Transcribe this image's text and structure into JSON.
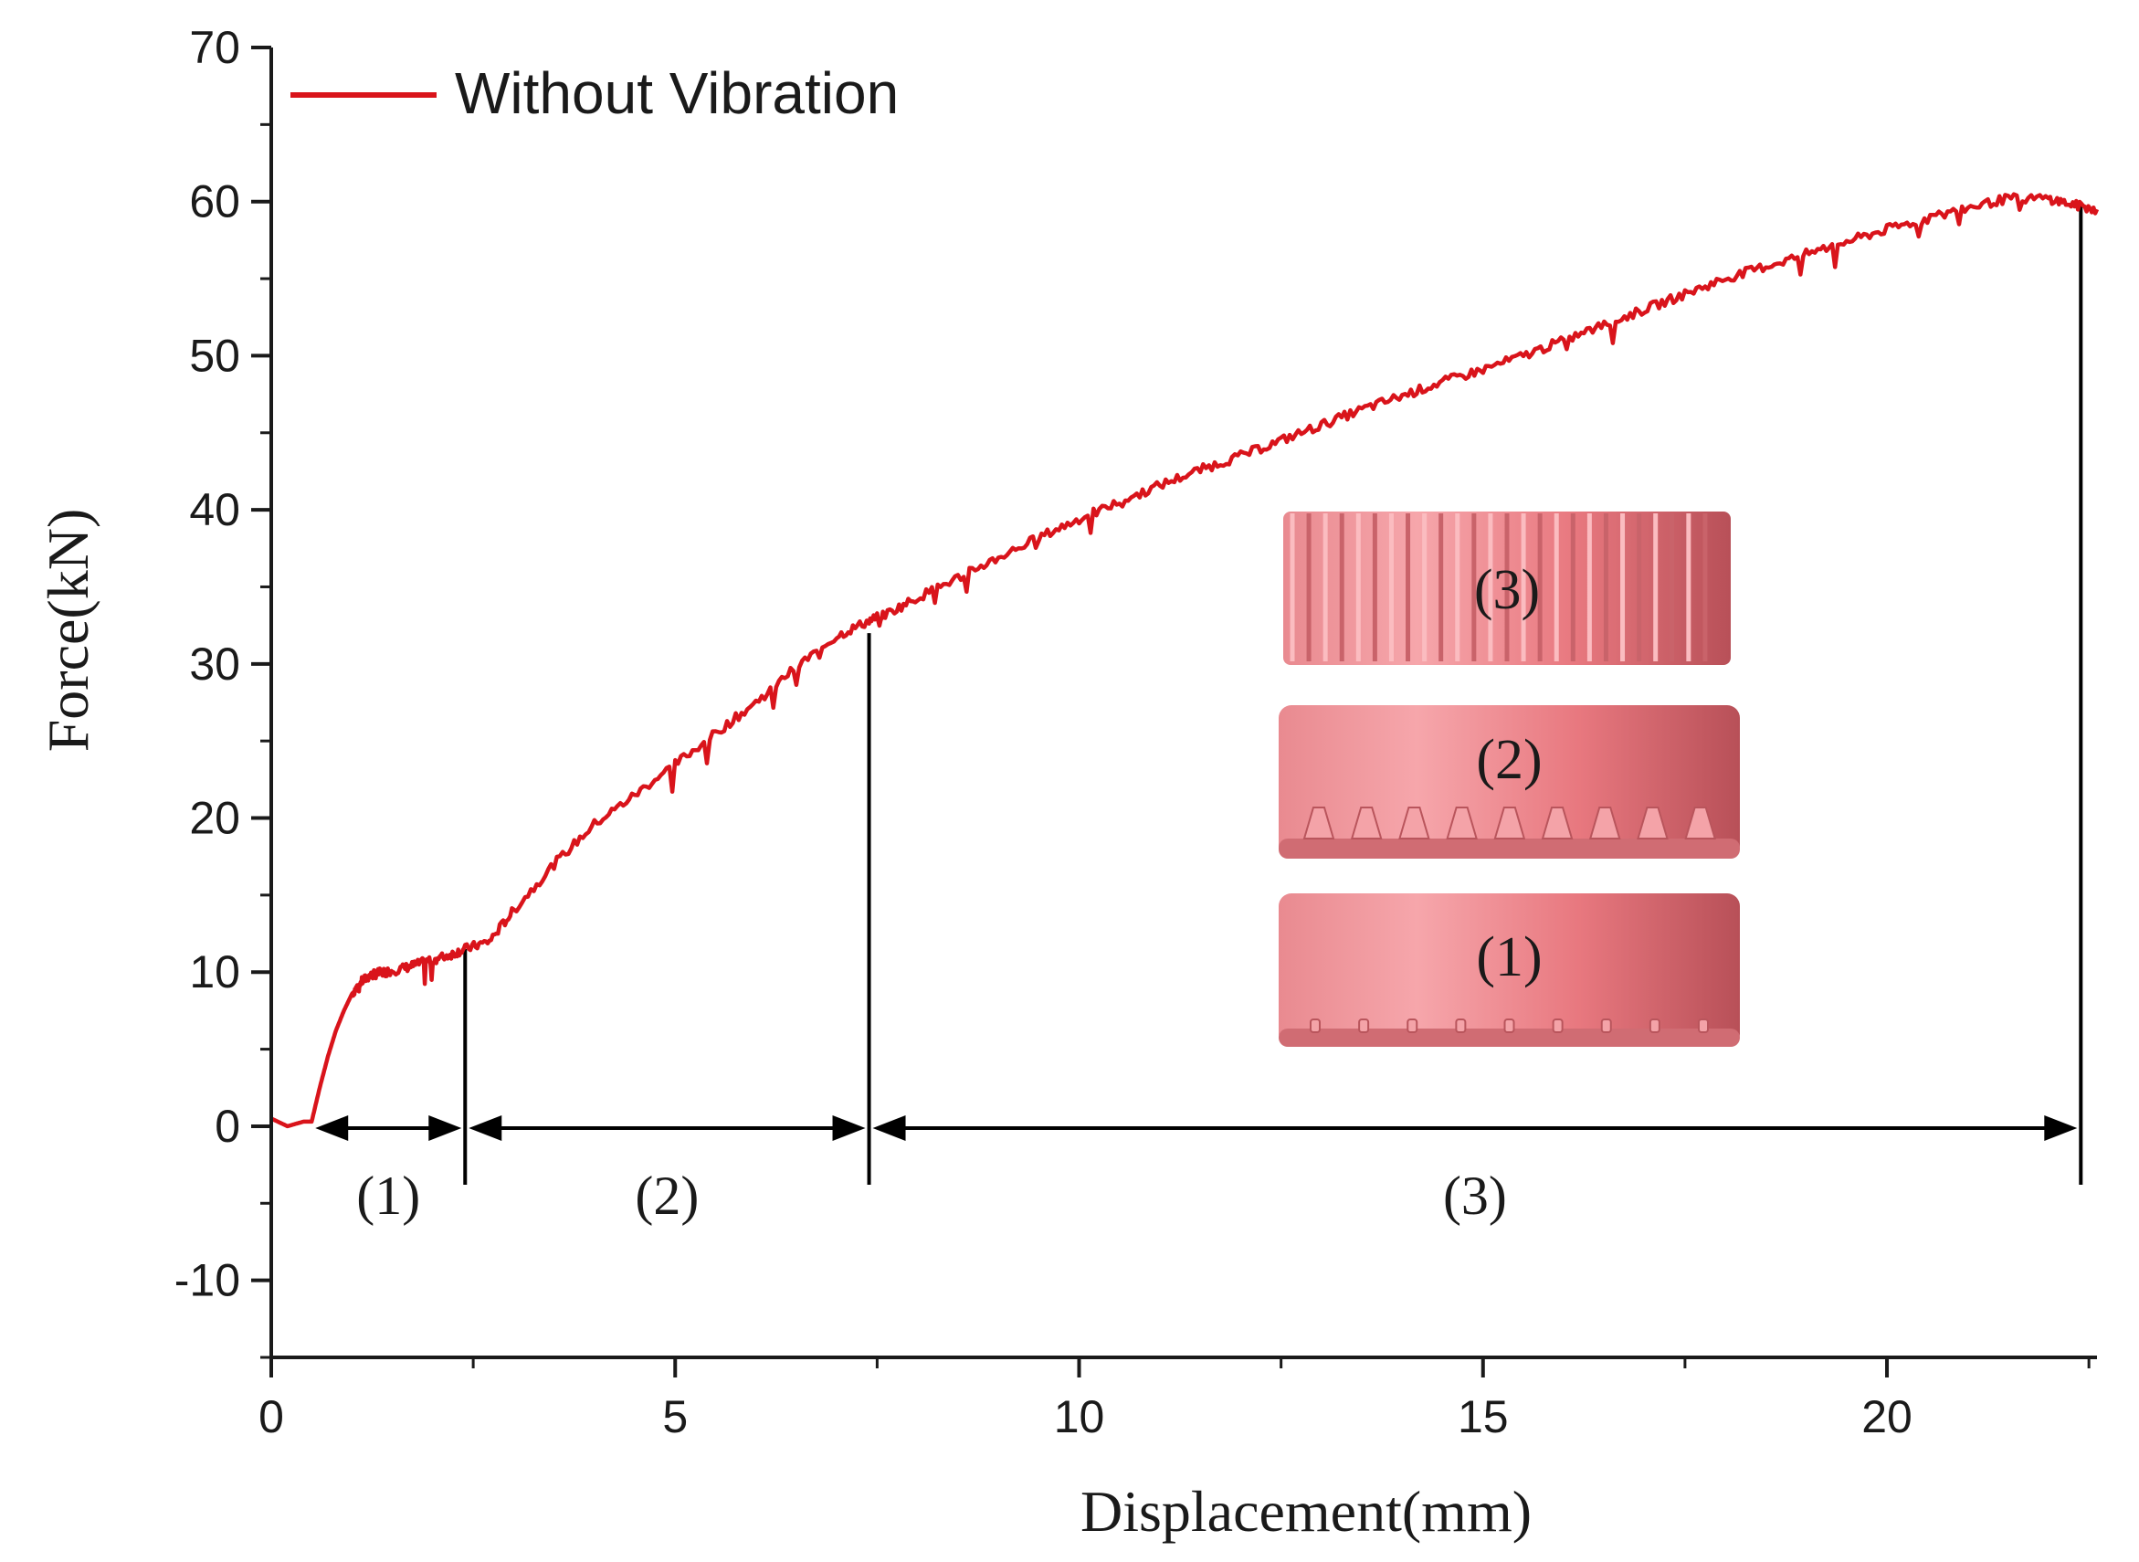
{
  "chart_data": {
    "type": "line",
    "title": "",
    "xlabel": "Displacement(mm)",
    "ylabel": "Force(kN)",
    "xlim": [
      0,
      22.6
    ],
    "ylim": [
      -15,
      70
    ],
    "xticks": [
      0,
      5,
      10,
      15,
      20
    ],
    "yticks": [
      -10,
      0,
      10,
      20,
      30,
      40,
      50,
      60,
      70
    ],
    "grid": false,
    "legend": {
      "position": "top-left",
      "entries": [
        "Without Vibration"
      ]
    },
    "colors": {
      "series": "#d9141b",
      "axis": "#1a1a1a",
      "annotation": "#000000",
      "inset_light": "#f39a9f",
      "inset_mid": "#e7777f",
      "inset_dark": "#b9555c"
    },
    "series": [
      {
        "name": "Without Vibration",
        "x": [
          0,
          0.2,
          0.4,
          0.5,
          0.6,
          0.7,
          0.8,
          0.9,
          1.0,
          1.1,
          1.2,
          1.3,
          1.4,
          1.6,
          1.8,
          2.0,
          2.2,
          2.4,
          2.7,
          3.0,
          3.5,
          4.0,
          4.5,
          5.0,
          5.5,
          6.0,
          6.5,
          7.0,
          7.4,
          7.6,
          8.0,
          8.5,
          9.0,
          9.5,
          10.0,
          10.5,
          11.0,
          11.5,
          12.0,
          12.5,
          13.0,
          13.5,
          14.0,
          14.5,
          15.0,
          15.5,
          16.0,
          16.5,
          17.0,
          17.5,
          18.0,
          18.5,
          19.0,
          19.5,
          20.0,
          20.5,
          21.0,
          21.5,
          22.0,
          22.3,
          22.6
        ],
        "y": [
          0.5,
          0,
          0.3,
          0.3,
          2.5,
          4.5,
          6.2,
          7.5,
          8.6,
          9.3,
          9.7,
          9.9,
          10.0,
          10.2,
          10.5,
          10.8,
          11.1,
          11.5,
          12.0,
          14.0,
          17.0,
          19.6,
          21.5,
          23.5,
          25.5,
          27.5,
          29.8,
          31.8,
          32.8,
          33.2,
          34.3,
          35.6,
          36.9,
          38.2,
          39.4,
          40.5,
          41.6,
          42.6,
          43.5,
          44.5,
          45.5,
          46.5,
          47.4,
          48.3,
          49.1,
          50.0,
          51.0,
          52.0,
          53.0,
          54.0,
          55.0,
          55.8,
          56.6,
          57.4,
          58.2,
          58.9,
          59.6,
          60.2,
          60.2,
          59.8,
          59.5
        ]
      }
    ],
    "regions": [
      {
        "label": "(1)",
        "start": 0.5,
        "end": 2.4
      },
      {
        "label": "(2)",
        "start": 2.4,
        "end": 7.4
      },
      {
        "label": "(3)",
        "start": 7.4,
        "end": 22.4
      }
    ],
    "boundary_markers": [
      {
        "x": 2.4,
        "y_top": 11.5
      },
      {
        "x": 7.4,
        "y_top": 32.0
      },
      {
        "x": 22.4,
        "y_top": 59.8
      }
    ],
    "inset": {
      "description_labels": [
        "(3)",
        "(2)",
        "(1)"
      ]
    }
  }
}
